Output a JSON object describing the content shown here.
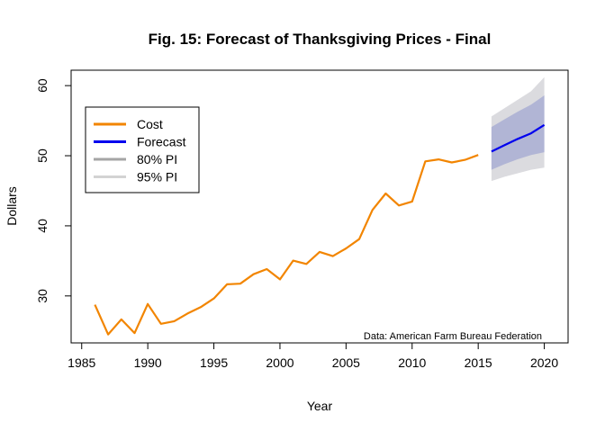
{
  "chart_data": {
    "type": "line",
    "title": "Fig. 15: Forecast of Thanksgiving Prices - Final",
    "xlabel": "Year",
    "ylabel": "Dollars",
    "xlim": [
      1984.2,
      2021.8
    ],
    "ylim": [
      23.3,
      62.2
    ],
    "x_ticks": [
      1985,
      1990,
      1995,
      2000,
      2005,
      2010,
      2015,
      2020
    ],
    "y_ticks": [
      30,
      40,
      50,
      60
    ],
    "grid": false,
    "legend_placement": "top-left",
    "annotation": "Data: American Farm Bureau Federation",
    "series": [
      {
        "name": "Cost",
        "color": "#F28500",
        "x": [
          1986,
          1987,
          1988,
          1989,
          1990,
          1991,
          1992,
          1993,
          1994,
          1995,
          1996,
          1997,
          1998,
          1999,
          2000,
          2001,
          2002,
          2003,
          2004,
          2005,
          2006,
          2007,
          2008,
          2009,
          2010,
          2011,
          2012,
          2013,
          2014,
          2015
        ],
        "y": [
          28.74,
          24.51,
          26.65,
          24.7,
          28.85,
          26.02,
          26.39,
          27.49,
          28.4,
          29.64,
          31.66,
          31.75,
          33.09,
          33.83,
          32.37,
          35.04,
          34.56,
          36.28,
          35.68,
          36.78,
          38.1,
          42.26,
          44.61,
          42.91,
          43.47,
          49.2,
          49.48,
          49.04,
          49.41,
          50.11
        ]
      },
      {
        "name": "Forecast",
        "color": "#0000EE",
        "x": [
          2016,
          2017,
          2018,
          2019,
          2020
        ],
        "y": [
          50.6,
          51.5,
          52.4,
          53.2,
          54.4
        ]
      }
    ],
    "intervals": [
      {
        "name": "95% PI",
        "color": "#DBDBDF",
        "x": [
          2016,
          2017,
          2018,
          2019,
          2020
        ],
        "lower": [
          46.4,
          47.0,
          47.5,
          48.0,
          48.3
        ],
        "upper": [
          55.6,
          56.8,
          58.0,
          59.2,
          61.2
        ]
      },
      {
        "name": "80% PI",
        "color": "#B1B5D5",
        "x": [
          2016,
          2017,
          2018,
          2019,
          2020
        ],
        "lower": [
          48.0,
          48.8,
          49.5,
          50.1,
          50.5
        ],
        "upper": [
          54.1,
          55.2,
          56.3,
          57.3,
          58.6
        ]
      }
    ],
    "legend": [
      {
        "label": "Cost",
        "color": "#F28500"
      },
      {
        "label": "Forecast",
        "color": "#0000EE"
      },
      {
        "label": "80% PI",
        "color": "#A5A5A5"
      },
      {
        "label": "95% PI",
        "color": "#D3D3D3"
      }
    ]
  }
}
